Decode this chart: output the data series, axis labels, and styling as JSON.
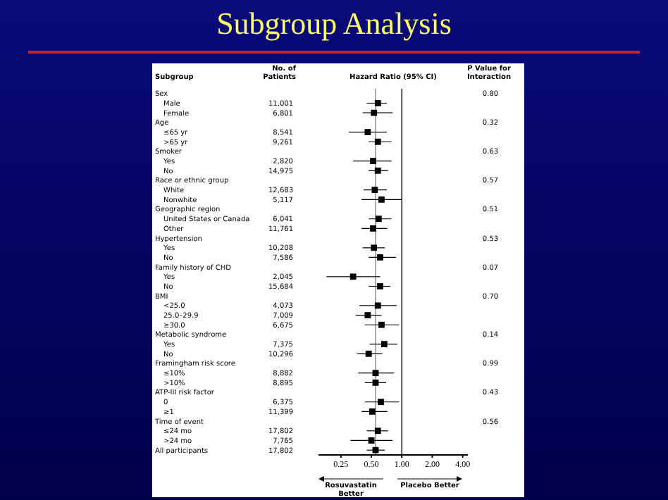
{
  "chart_data": [
    {
      "type": "other",
      "title": "Subgroup Analysis",
      "ylabel": "Subgroup",
      "categories": [
        "Sex",
        "Male",
        "Female",
        "Age",
        "≤65 yr",
        ">65 yr",
        "Smoker",
        "Yes",
        "No",
        "Race or ethnic group",
        "White",
        "Nonwhite",
        "Geographic region",
        "United States or Canada",
        "Other",
        "Hypertension",
        "Yes",
        "No",
        "Family history of CHD",
        "Yes",
        "No",
        "BMI",
        "<25.0",
        "25.0–29.9",
        "≥30.0",
        "Metabolic syndrome",
        "Yes",
        "No",
        "Framingham risk score",
        "≤10%",
        ">10%",
        "ATP-III risk factor",
        "0",
        "≥1",
        "Time of event",
        "≤24 mo",
        ">24 mo",
        "All participants"
      ],
      "series": [
        {
          "name": "No. of Patients",
          "color": "#000000",
          "values": [
            null,
            11001,
            6801,
            null,
            8541,
            9261,
            null,
            2820,
            14975,
            null,
            12683,
            5117,
            null,
            6041,
            11761,
            null,
            10208,
            7586,
            null,
            2045,
            15684,
            null,
            4073,
            7009,
            6675,
            null,
            7375,
            10296,
            null,
            8882,
            8895,
            null,
            6375,
            11399,
            null,
            17802,
            7765,
            17802
          ],
          "value_labels": [
            null,
            "11,001",
            "6,801",
            null,
            "8,541",
            "9,261",
            null,
            "2,820",
            "14,975",
            null,
            "12,683",
            "5,117",
            null,
            "6,041",
            "11,761",
            null,
            "10,208",
            "7,586",
            null,
            "2,045",
            "15,684",
            null,
            "4,073",
            "7,009",
            "6,675",
            null,
            "7,375",
            "10,296",
            null,
            "8,882",
            "8,895",
            null,
            "6,375",
            "11,399",
            null,
            "17,802",
            "7,765",
            "17,802"
          ]
        },
        {
          "name": "P Value for Interaction",
          "color": "#000000",
          "values": [
            0.8,
            null,
            null,
            0.32,
            null,
            null,
            0.63,
            null,
            null,
            0.57,
            null,
            null,
            0.51,
            null,
            null,
            0.53,
            null,
            null,
            0.07,
            null,
            null,
            0.7,
            null,
            null,
            null,
            0.14,
            null,
            null,
            0.99,
            null,
            null,
            0.43,
            null,
            null,
            0.56,
            null,
            null,
            null
          ],
          "value_labels": [
            "0.80",
            null,
            null,
            "0.32",
            null,
            null,
            "0.63",
            null,
            null,
            "0.57",
            null,
            null,
            "0.51",
            null,
            null,
            "0.53",
            null,
            null,
            "0.07",
            null,
            null,
            "0.70",
            null,
            null,
            null,
            "0.14",
            null,
            null,
            "0.99",
            null,
            null,
            "0.43",
            null,
            null,
            "0.56",
            null,
            null,
            null
          ]
        }
      ]
    },
    {
      "type": "scatter",
      "orientation": "horizontal",
      "xlabel": "Hazard Ratio (95% CI)",
      "tick_labels": "x",
      "categories": [
        null,
        null,
        null,
        null,
        null,
        null,
        null,
        null,
        null,
        null,
        null,
        null,
        null,
        null,
        null,
        null,
        null,
        null,
        null,
        null,
        null,
        null,
        null,
        null,
        null,
        null,
        null,
        null,
        null,
        null,
        null,
        null,
        null,
        null,
        null,
        null,
        null,
        null
      ],
      "series": [
        {
          "color": "#000000",
          "values": [
            null,
            0.58,
            0.53,
            null,
            0.46,
            0.58,
            null,
            0.52,
            0.58,
            null,
            0.54,
            0.63,
            null,
            0.59,
            0.52,
            null,
            0.53,
            0.61,
            null,
            0.33,
            0.61,
            null,
            0.58,
            0.46,
            0.63,
            null,
            0.67,
            0.47,
            null,
            0.55,
            0.55,
            null,
            0.62,
            0.51,
            null,
            0.58,
            0.5,
            0.55
          ],
          "errors": [
            null,
            [
              0.45,
              0.71
            ],
            [
              0.41,
              0.81
            ],
            null,
            [
              0.3,
              0.71
            ],
            [
              0.47,
              0.79
            ],
            null,
            [
              0.33,
              0.79
            ],
            [
              0.47,
              0.73
            ],
            null,
            [
              0.42,
              0.71
            ],
            [
              0.4,
              1.0
            ],
            null,
            [
              0.47,
              0.79
            ],
            [
              0.4,
              0.72
            ],
            null,
            [
              0.41,
              0.68
            ],
            [
              0.47,
              0.88
            ],
            null,
            [
              0.18,
              0.61
            ],
            [
              0.47,
              0.77
            ],
            null,
            [
              0.38,
              0.89
            ],
            [
              0.35,
              0.63
            ],
            [
              0.43,
              0.94
            ],
            null,
            [
              0.48,
              0.9
            ],
            [
              0.36,
              0.64
            ],
            null,
            [
              0.37,
              0.84
            ],
            [
              0.43,
              0.7
            ],
            null,
            [
              0.43,
              0.94
            ],
            [
              0.4,
              0.72
            ],
            null,
            [
              0.45,
              0.73
            ],
            [
              0.31,
              0.81
            ],
            [
              0.45,
              0.68
            ]
          ]
        }
      ],
      "xlim": [
        0.15,
        4.5
      ],
      "log": "x",
      "xticks": [
        {
          "value": 0.25,
          "label": "0.25"
        },
        {
          "value": 0.5,
          "label": "0.50"
        },
        {
          "value": 1,
          "label": "1.00"
        },
        {
          "value": 2,
          "label": "2.00"
        },
        {
          "value": 4,
          "label": "4.00"
        }
      ],
      "ref_lines": [
        {
          "axis": "x",
          "value": 1,
          "color": "#000000"
        },
        {
          "axis": "x",
          "value": 0.55,
          "color": "#888888"
        }
      ],
      "marker": "square",
      "annotations": [
        "Rosuvastatin Better",
        "Placebo Better"
      ]
    }
  ]
}
